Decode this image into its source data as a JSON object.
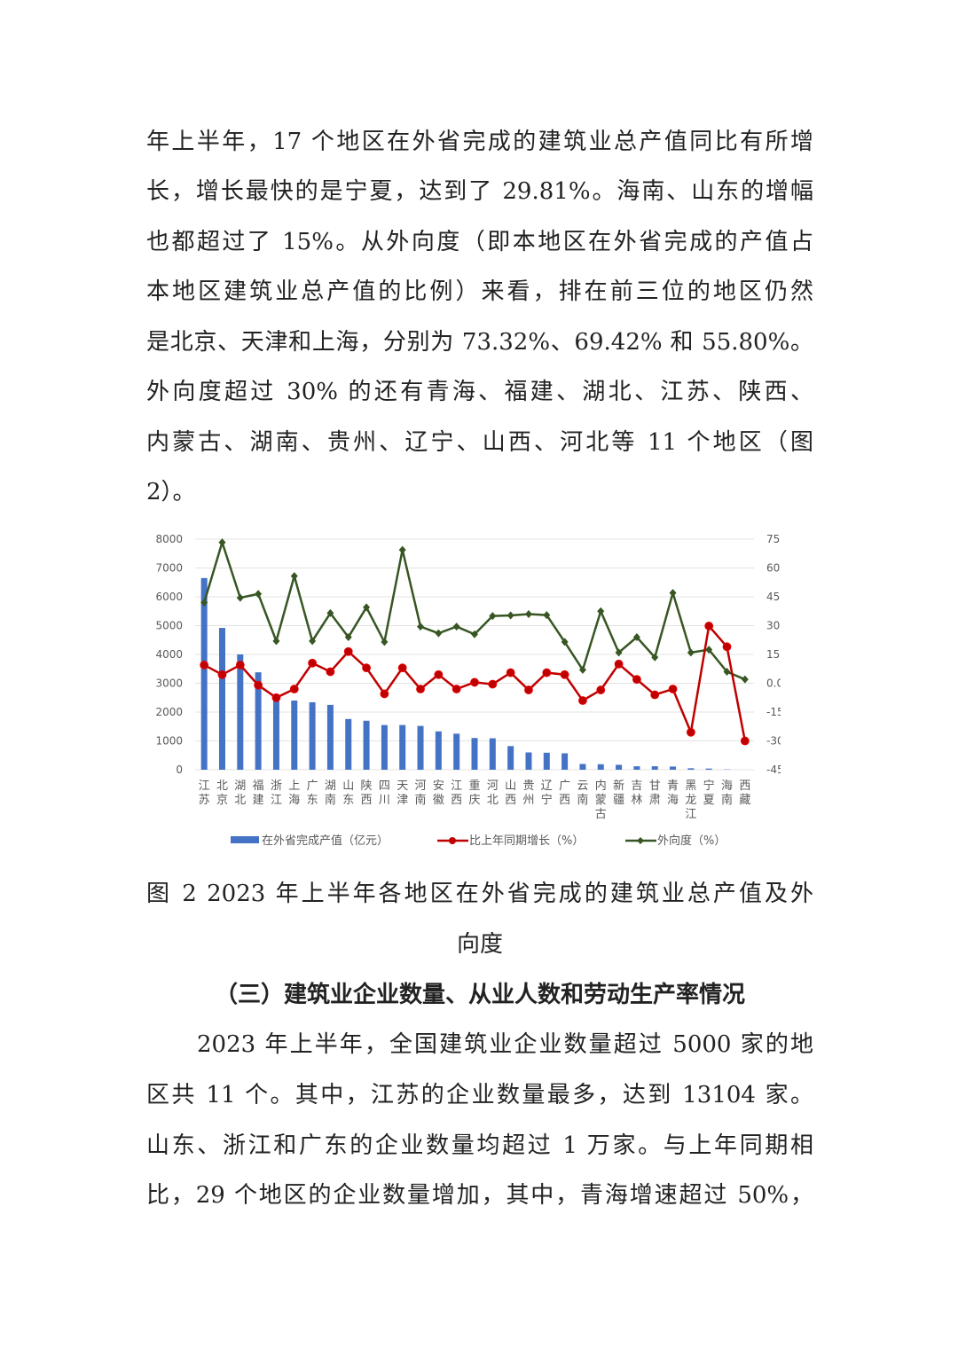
{
  "paragraph1": {
    "lines": [
      "年上半年，17 个地区在外省完成的建筑业总产值同比有所增",
      "长，增长最快的是宁夏，达到了 29.81%。海南、山东的增幅",
      "也都超过了 15%。从外向度（即本地区在外省完成的产值占",
      "本地区建筑业总产值的比例）来看，排在前三位的地区仍然",
      "是北京、天津和上海，分别为 73.32%、69.42% 和 55.80%。",
      "外向度超过 30% 的还有青海、福建、湖北、江苏、陕西、",
      "内蒙古、湖南、贵州、辽宁、山西、河北等 11 个地区（图",
      "2）。"
    ]
  },
  "caption": {
    "lines": [
      "图 2 2023 年上半年各地区在外省完成的建筑业总产值及外",
      "向度"
    ]
  },
  "section_heading": "（三）建筑业企业数量、从业人数和劳动生产率情况",
  "paragraph2": {
    "lines": [
      "2023 年上半年，全国建筑业企业数量超过 5000 家的地",
      "区共 11 个。其中，江苏的企业数量最多，达到 13104 家。",
      "山东、浙江和广东的企业数量均超过 1 万家。与上年同期相",
      "比，29 个地区的企业数量增加，其中，青海增速超过 50%，"
    ]
  },
  "chart_data": {
    "type": "bar+line",
    "categories": [
      "江苏",
      "北京",
      "湖北",
      "福建",
      "浙江",
      "上海",
      "广东",
      "湖南",
      "山东",
      "陕西",
      "四川",
      "天津",
      "河南",
      "安徽",
      "江西",
      "重庆",
      "河北",
      "山西",
      "贵州",
      "辽宁",
      "广西",
      "云南",
      "内蒙古",
      "新疆",
      "吉林",
      "甘肃",
      "青海",
      "黑龙江",
      "宁夏",
      "海南",
      "西藏"
    ],
    "y_left": {
      "range": [
        0,
        8000
      ],
      "ticks": [
        "0",
        "1000",
        "2000",
        "3000",
        "4000",
        "5000",
        "6000",
        "7000",
        "8000"
      ]
    },
    "y_right": {
      "range": [
        -45,
        75
      ],
      "ticks": [
        "-45.00",
        "-30.00",
        "-15.00",
        "0.00",
        "15.00",
        "30.00",
        "45.00",
        "60.00",
        "75.00"
      ]
    },
    "grid": true,
    "legend_position": "bottom",
    "series": [
      {
        "name": "在外省完成产值（亿元）",
        "type": "bar",
        "axis": "left",
        "color": "#4472c4",
        "values": [
          6650,
          4920,
          4000,
          3380,
          2450,
          2400,
          2340,
          2250,
          1760,
          1700,
          1550,
          1550,
          1520,
          1330,
          1250,
          1100,
          1090,
          820,
          600,
          590,
          570,
          200,
          190,
          170,
          120,
          120,
          110,
          50,
          40,
          10,
          0
        ]
      },
      {
        "name": "比上年同期增长（%）",
        "type": "line",
        "axis": "right",
        "color": "#c00000",
        "marker": "circle",
        "values": [
          9.5,
          4.5,
          9.5,
          -1,
          -7.5,
          -3,
          10.5,
          6,
          16.5,
          8,
          -5.5,
          8,
          -3,
          4.5,
          -3,
          0.5,
          -0.5,
          5.5,
          -3.5,
          5.5,
          4.5,
          -9,
          -3.5,
          10,
          2,
          -6,
          -3,
          -25.5,
          29.81,
          19,
          -30
        ]
      },
      {
        "name": "外向度（%）",
        "type": "line",
        "axis": "right",
        "color": "#375623",
        "marker": "diamond",
        "values": [
          42,
          73.32,
          44.5,
          46.5,
          22,
          55.8,
          22,
          36.5,
          24,
          39.5,
          21.5,
          69.42,
          29.5,
          26,
          29.5,
          25.5,
          35,
          35.3,
          36,
          35.5,
          21.5,
          7,
          37.5,
          16,
          24,
          13.5,
          47,
          16,
          17.5,
          6,
          2
        ]
      }
    ]
  }
}
